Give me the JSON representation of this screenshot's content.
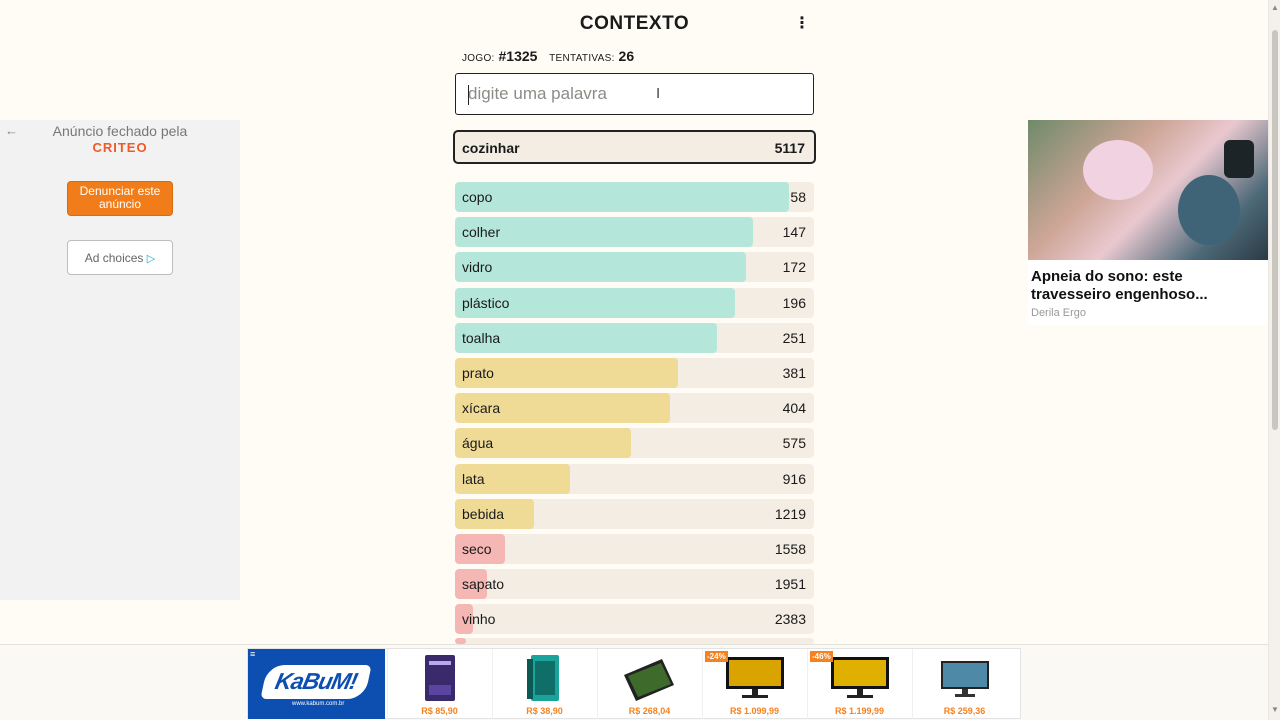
{
  "header": {
    "title": "CONTEXTO",
    "menu_icon": "kebab-menu-icon"
  },
  "stats": {
    "game_label": "JOGO:",
    "game_number": "#1325",
    "attempts_label": "TENTATIVAS:",
    "attempts": "26"
  },
  "search": {
    "placeholder": "digite uma palavra",
    "value": ""
  },
  "current_guess": {
    "word": "cozinhar",
    "rank": "5117"
  },
  "colors": {
    "green": "#b4e7d9",
    "yellow": "#efdb96",
    "red": "#f4b7b4",
    "track": "#f3ede4"
  },
  "guesses": [
    {
      "word": "copo",
      "rank": "58",
      "level": 0.93,
      "color": "green"
    },
    {
      "word": "colher",
      "rank": "147",
      "level": 0.83,
      "color": "green"
    },
    {
      "word": "vidro",
      "rank": "172",
      "level": 0.81,
      "color": "green"
    },
    {
      "word": "plástico",
      "rank": "196",
      "level": 0.78,
      "color": "green"
    },
    {
      "word": "toalha",
      "rank": "251",
      "level": 0.73,
      "color": "green"
    },
    {
      "word": "prato",
      "rank": "381",
      "level": 0.62,
      "color": "yellow"
    },
    {
      "word": "xícara",
      "rank": "404",
      "level": 0.6,
      "color": "yellow"
    },
    {
      "word": "água",
      "rank": "575",
      "level": 0.49,
      "color": "yellow"
    },
    {
      "word": "lata",
      "rank": "916",
      "level": 0.32,
      "color": "yellow"
    },
    {
      "word": "bebida",
      "rank": "1219",
      "level": 0.22,
      "color": "yellow"
    },
    {
      "word": "seco",
      "rank": "1558",
      "level": 0.14,
      "color": "red"
    },
    {
      "word": "sapato",
      "rank": "1951",
      "level": 0.09,
      "color": "red"
    },
    {
      "word": "vinho",
      "rank": "2383",
      "level": 0.05,
      "color": "red"
    }
  ],
  "left_ad": {
    "closed_text": "Anúncio fechado pela",
    "brand": "CRITEO",
    "report_button": "Denunciar este anúncio",
    "choices_button": "Ad choices"
  },
  "right_ad": {
    "headline": "Apneia do sono: este travesseiro engenhoso...",
    "advertiser": "Derila Ergo"
  },
  "bottom_ad": {
    "brand": "KaBuM!",
    "url": "www.kabum.com.br",
    "products": [
      {
        "price": "R$ 85,90",
        "badge": ""
      },
      {
        "price": "R$ 38,90",
        "badge": ""
      },
      {
        "price": "R$ 268,04",
        "badge": ""
      },
      {
        "price": "R$ 1.099,99",
        "badge": "-24%"
      },
      {
        "price": "R$ 1.199,99",
        "badge": "-46%"
      },
      {
        "price": "R$ 259,36",
        "badge": ""
      }
    ]
  }
}
